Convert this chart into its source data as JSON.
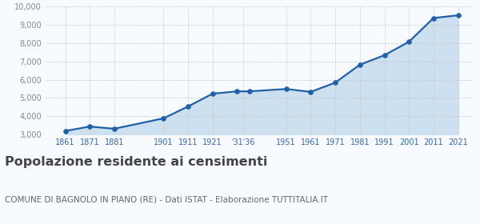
{
  "years": [
    1861,
    1871,
    1881,
    1901,
    1911,
    1921,
    1931,
    1936,
    1951,
    1961,
    1971,
    1981,
    1991,
    2001,
    2011,
    2021
  ],
  "population": [
    3190,
    3430,
    3310,
    3880,
    4530,
    5230,
    5360,
    5360,
    5490,
    5330,
    5840,
    6820,
    7340,
    8080,
    9380,
    9530
  ],
  "x_tick_labels": [
    "1861",
    "1871",
    "1881",
    "1901",
    "1911",
    "1921",
    "'31'36",
    "1951",
    "1961",
    "1971",
    "1981",
    "1991",
    "2001",
    "2011",
    "2021"
  ],
  "x_tick_positions": [
    1861,
    1871,
    1881,
    1901,
    1911,
    1921,
    1933.5,
    1951,
    1961,
    1971,
    1981,
    1991,
    2001,
    2011,
    2021
  ],
  "ylim": [
    3000,
    10000
  ],
  "yticks": [
    3000,
    4000,
    5000,
    6000,
    7000,
    8000,
    9000,
    10000
  ],
  "ytick_labels": [
    "3,000",
    "4,000",
    "5,000",
    "6,000",
    "7,000",
    "8,000",
    "9,000",
    "10,000"
  ],
  "line_color": "#2060a8",
  "fill_color": "#cce0f0",
  "marker_color": "#2060a8",
  "background_color": "#f7fbff",
  "grid_color": "#c8c8c8",
  "title": "Popolazione residente ai censimenti",
  "subtitle": "COMUNE DI BAGNOLO IN PIANO (RE) - Dati ISTAT - Elaborazione TUTTITALIA.IT",
  "title_fontsize": 11.5,
  "subtitle_fontsize": 7.5,
  "tick_label_color_x": "#3366bb",
  "tick_label_color_y": "#888888"
}
